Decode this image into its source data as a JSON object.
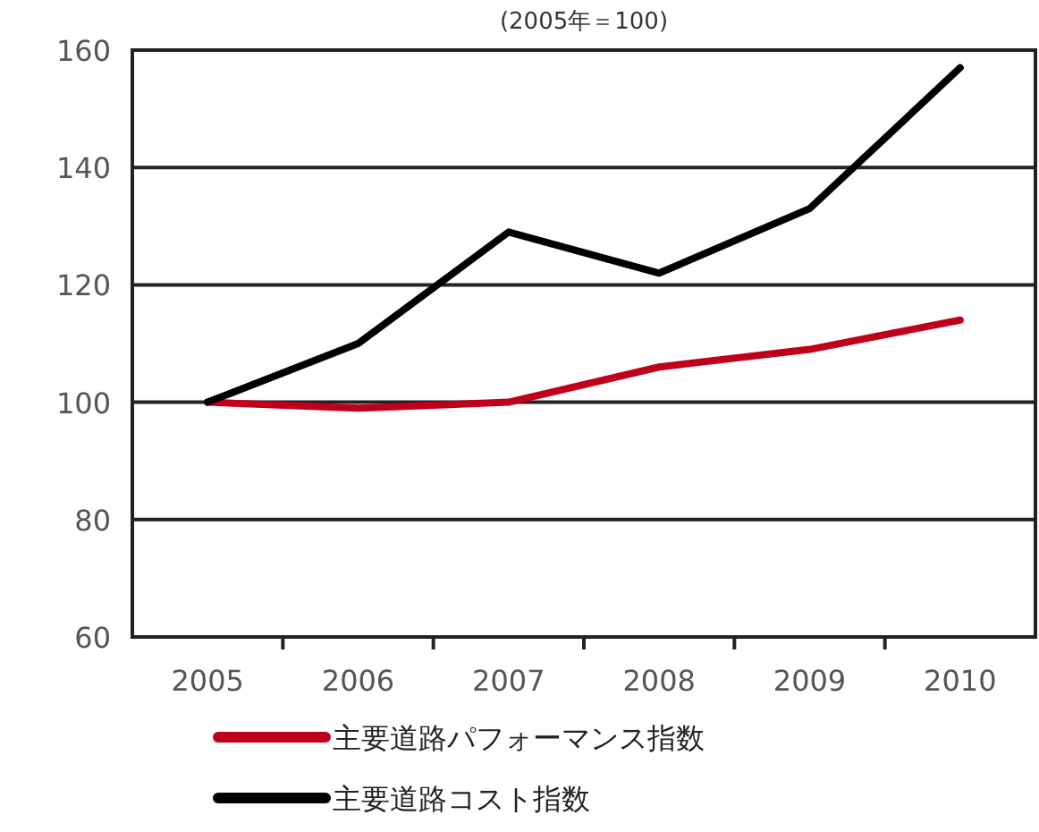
{
  "chart_data": {
    "type": "line",
    "title": "(2005年＝100)",
    "categories": [
      "2005",
      "2006",
      "2007",
      "2008",
      "2009",
      "2010"
    ],
    "series": [
      {
        "name": "主要道路パフォーマンス指数",
        "color": "#c0001a",
        "values": [
          100,
          99,
          100,
          106,
          109,
          114
        ]
      },
      {
        "name": "主要道路コスト指数",
        "color": "#000000",
        "values": [
          100,
          110,
          129,
          122,
          133,
          157
        ]
      }
    ],
    "ylim": [
      60,
      160
    ],
    "yticks": [
      60,
      80,
      100,
      120,
      140,
      160
    ],
    "grid": "y",
    "legend": "bottom"
  }
}
